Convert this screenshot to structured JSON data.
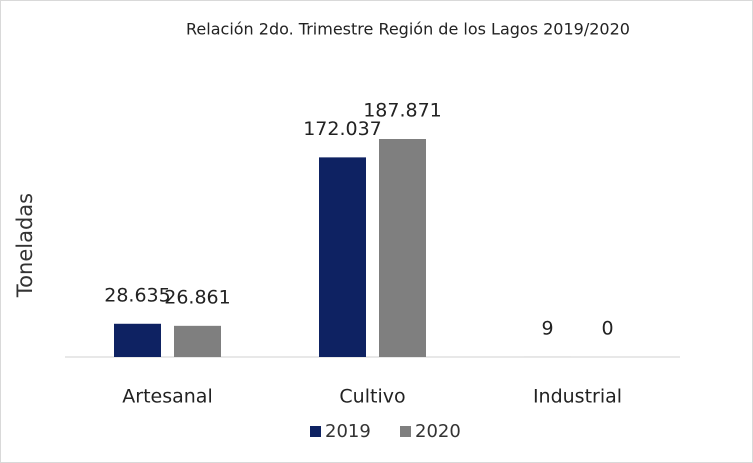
{
  "chart_data": {
    "type": "bar",
    "title": "Relación 2do. Trimestre Región de los Lagos 2019/2020",
    "ylabel": "Toneladas",
    "categories": [
      "Artesanal",
      "Cultivo",
      "Industrial"
    ],
    "series": [
      {
        "name": "2019",
        "color": "#0e2262",
        "values": [
          28635,
          172037,
          9
        ],
        "value_labels": [
          "28.635",
          "172.037",
          "9"
        ]
      },
      {
        "name": "2020",
        "color": "#7f7f7f",
        "values": [
          26861,
          187871,
          0
        ],
        "value_labels": [
          "26.861",
          "187.871",
          "0"
        ]
      }
    ],
    "legend": "bottom"
  }
}
